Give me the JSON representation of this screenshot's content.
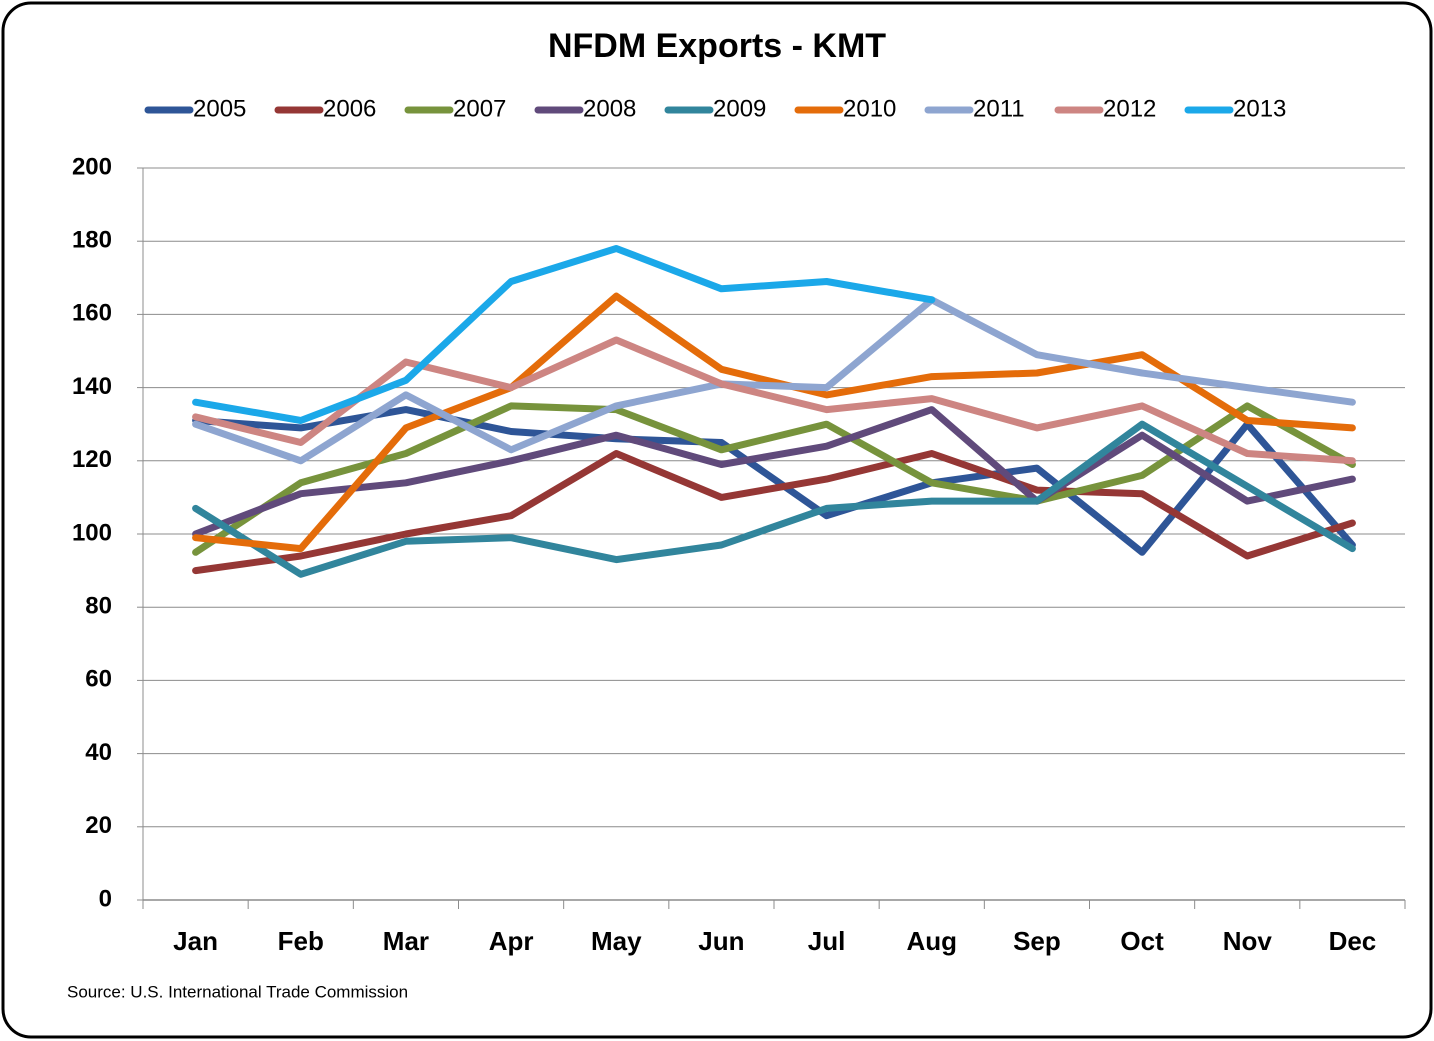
{
  "chart_data": {
    "type": "line",
    "title": "NFDM Exports - KMT",
    "note": "Source: U.S. International Trade Commission",
    "categories": [
      "Jan",
      "Feb",
      "Mar",
      "Apr",
      "May",
      "Jun",
      "Jul",
      "Aug",
      "Sep",
      "Oct",
      "Nov",
      "Dec"
    ],
    "ylim": [
      0,
      200
    ],
    "yticks": [
      0,
      20,
      40,
      60,
      80,
      100,
      120,
      140,
      160,
      180,
      200
    ],
    "grid": true,
    "legend": "top",
    "series": [
      {
        "name": "2005",
        "color": "#2e5597",
        "values": [
          131,
          129,
          134,
          128,
          126,
          125,
          105,
          114,
          118,
          95,
          130,
          97
        ]
      },
      {
        "name": "2006",
        "color": "#953735",
        "values": [
          90,
          94,
          100,
          105,
          122,
          110,
          115,
          122,
          112,
          111,
          94,
          103
        ]
      },
      {
        "name": "2007",
        "color": "#77933c",
        "values": [
          95,
          114,
          122,
          135,
          134,
          123,
          130,
          114,
          109,
          116,
          135,
          119
        ]
      },
      {
        "name": "2008",
        "color": "#604a7b",
        "values": [
          100,
          111,
          114,
          120,
          127,
          119,
          124,
          134,
          109,
          127,
          109,
          115
        ]
      },
      {
        "name": "2009",
        "color": "#31859c",
        "values": [
          107,
          89,
          98,
          99,
          93,
          97,
          107,
          109,
          109,
          130,
          113,
          96
        ]
      },
      {
        "name": "2010",
        "color": "#e46c0a",
        "values": [
          99,
          96,
          129,
          140,
          165,
          145,
          138,
          143,
          144,
          149,
          131,
          129
        ]
      },
      {
        "name": "2011",
        "color": "#8ea5d0",
        "values": [
          130,
          120,
          138,
          123,
          135,
          141,
          140,
          164,
          149,
          144,
          140,
          136
        ]
      },
      {
        "name": "2012",
        "color": "#cd8582",
        "values": [
          132,
          125,
          147,
          140,
          153,
          141,
          134,
          137,
          129,
          135,
          122,
          120
        ]
      },
      {
        "name": "2013",
        "color": "#1ba8e9",
        "values": [
          136,
          131,
          142,
          169,
          178,
          167,
          169,
          164,
          null,
          null,
          null,
          null
        ]
      }
    ]
  }
}
